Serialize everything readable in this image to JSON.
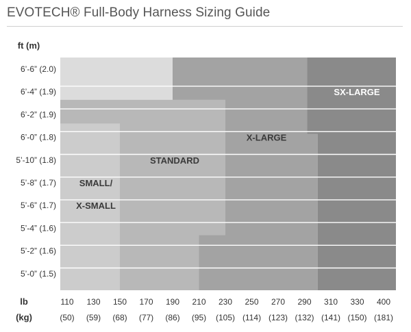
{
  "title": "EVOTECH® Full-Body Harness Sizing Guide",
  "chart_data": {
    "type": "heatmap",
    "title": "EVOTECH® Full-Body Harness Sizing Guide",
    "y_axis_label": "ft  (m)",
    "x_axis_label": "lb",
    "x_axis_label_2": "(kg)",
    "y_ticks": [
      {
        "label": "6’-6” (2.0)",
        "inches": 78
      },
      {
        "label": "6’-4” (1.9)",
        "inches": 76
      },
      {
        "label": "6’-2” (1.9)",
        "inches": 74
      },
      {
        "label": "6’-0” (1.8)",
        "inches": 72
      },
      {
        "label": "5’-10” (1.8)",
        "inches": 70
      },
      {
        "label": "5’-8” (1.7)",
        "inches": 68
      },
      {
        "label": "5’-6” (1.7)",
        "inches": 66
      },
      {
        "label": "5’-4” (1.6)",
        "inches": 64
      },
      {
        "label": "5’-2” (1.6)",
        "inches": 62
      },
      {
        "label": "5’-0” (1.5)",
        "inches": 60
      }
    ],
    "x_ticks": [
      {
        "lb": "110",
        "kg": "(50)"
      },
      {
        "lb": "130",
        "kg": "(59)"
      },
      {
        "lb": "150",
        "kg": "(68)"
      },
      {
        "lb": "170",
        "kg": "(77)"
      },
      {
        "lb": "190",
        "kg": "(86)"
      },
      {
        "lb": "210",
        "kg": "(95)"
      },
      {
        "lb": "230",
        "kg": "(105)"
      },
      {
        "lb": "250",
        "kg": "(114)"
      },
      {
        "lb": "270",
        "kg": "(123)"
      },
      {
        "lb": "290",
        "kg": "(132)"
      },
      {
        "lb": "310",
        "kg": "(141)"
      },
      {
        "lb": "330",
        "kg": "(150)"
      },
      {
        "lb": "400",
        "kg": "(181)"
      }
    ],
    "zones": [
      {
        "name": "SX-LARGE",
        "color": "#8a8a8a",
        "label_color": "#ffffff",
        "region": "weight 300–400 lb, height up to 6’-7”; weight 290–300 lb, height ~6’-1” to 6’-7”"
      },
      {
        "name": "X-LARGE",
        "color": "#a3a3a3",
        "label_color": "#3a3a3a",
        "region": "weight 210–300 lb (from ~190 lb above 6’-5”), heights 5’-0” to 6’-7”"
      },
      {
        "name": "STANDARD",
        "color": "#b8b8b8",
        "label_color": "#3a3a3a",
        "region": "weight 150–230 lb, heights up to ~6’-5”"
      },
      {
        "name": "SMALL/",
        "name_2": "X-SMALL",
        "color": "#cccccc",
        "label_color": "#3a3a3a",
        "region": "weight 100–150 lb, heights up to ~6’-1”"
      }
    ],
    "background_color": "#dcdcdc",
    "grid": true
  }
}
